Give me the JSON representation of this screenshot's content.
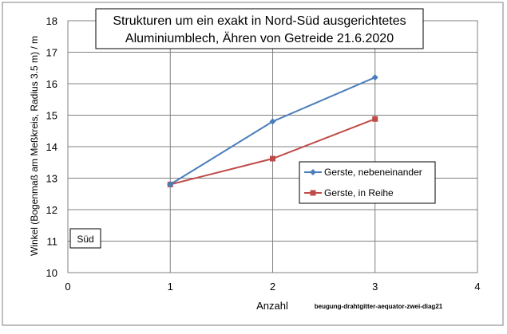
{
  "chart_data": {
    "type": "line",
    "title": [
      "Strukturen um ein exakt in Nord-Süd ausgerichtetes",
      "Aluminiumblech, Ähren von Getreide 21.6.2020"
    ],
    "xlabel": "Anzahl",
    "ylabel": "Winkel (Bogenmaß am Meßkreis, Radius 3.5 m) / m",
    "xlim": [
      0,
      4
    ],
    "ylim": [
      10,
      18
    ],
    "xticks": [
      "0",
      "1",
      "2",
      "3",
      "4"
    ],
    "yticks": [
      "10",
      "11",
      "12",
      "13",
      "14",
      "15",
      "16",
      "17",
      "18"
    ],
    "grid": true,
    "legend_position": "right-middle",
    "series": [
      {
        "name": "Gerste, nebeneinander",
        "marker": "diamond",
        "color": "#4a7ebb",
        "x": [
          1,
          2,
          3
        ],
        "y": [
          12.8,
          14.8,
          16.2
        ]
      },
      {
        "name": "Gerste, in Reihe",
        "marker": "square",
        "color": "#be4b48",
        "x": [
          1,
          2,
          3
        ],
        "y": [
          12.8,
          13.62,
          14.88
        ]
      }
    ],
    "annotations": {
      "region_label": "Süd",
      "source_label": "beugung-drahtgitter-aequator-zwei-diag21"
    }
  }
}
